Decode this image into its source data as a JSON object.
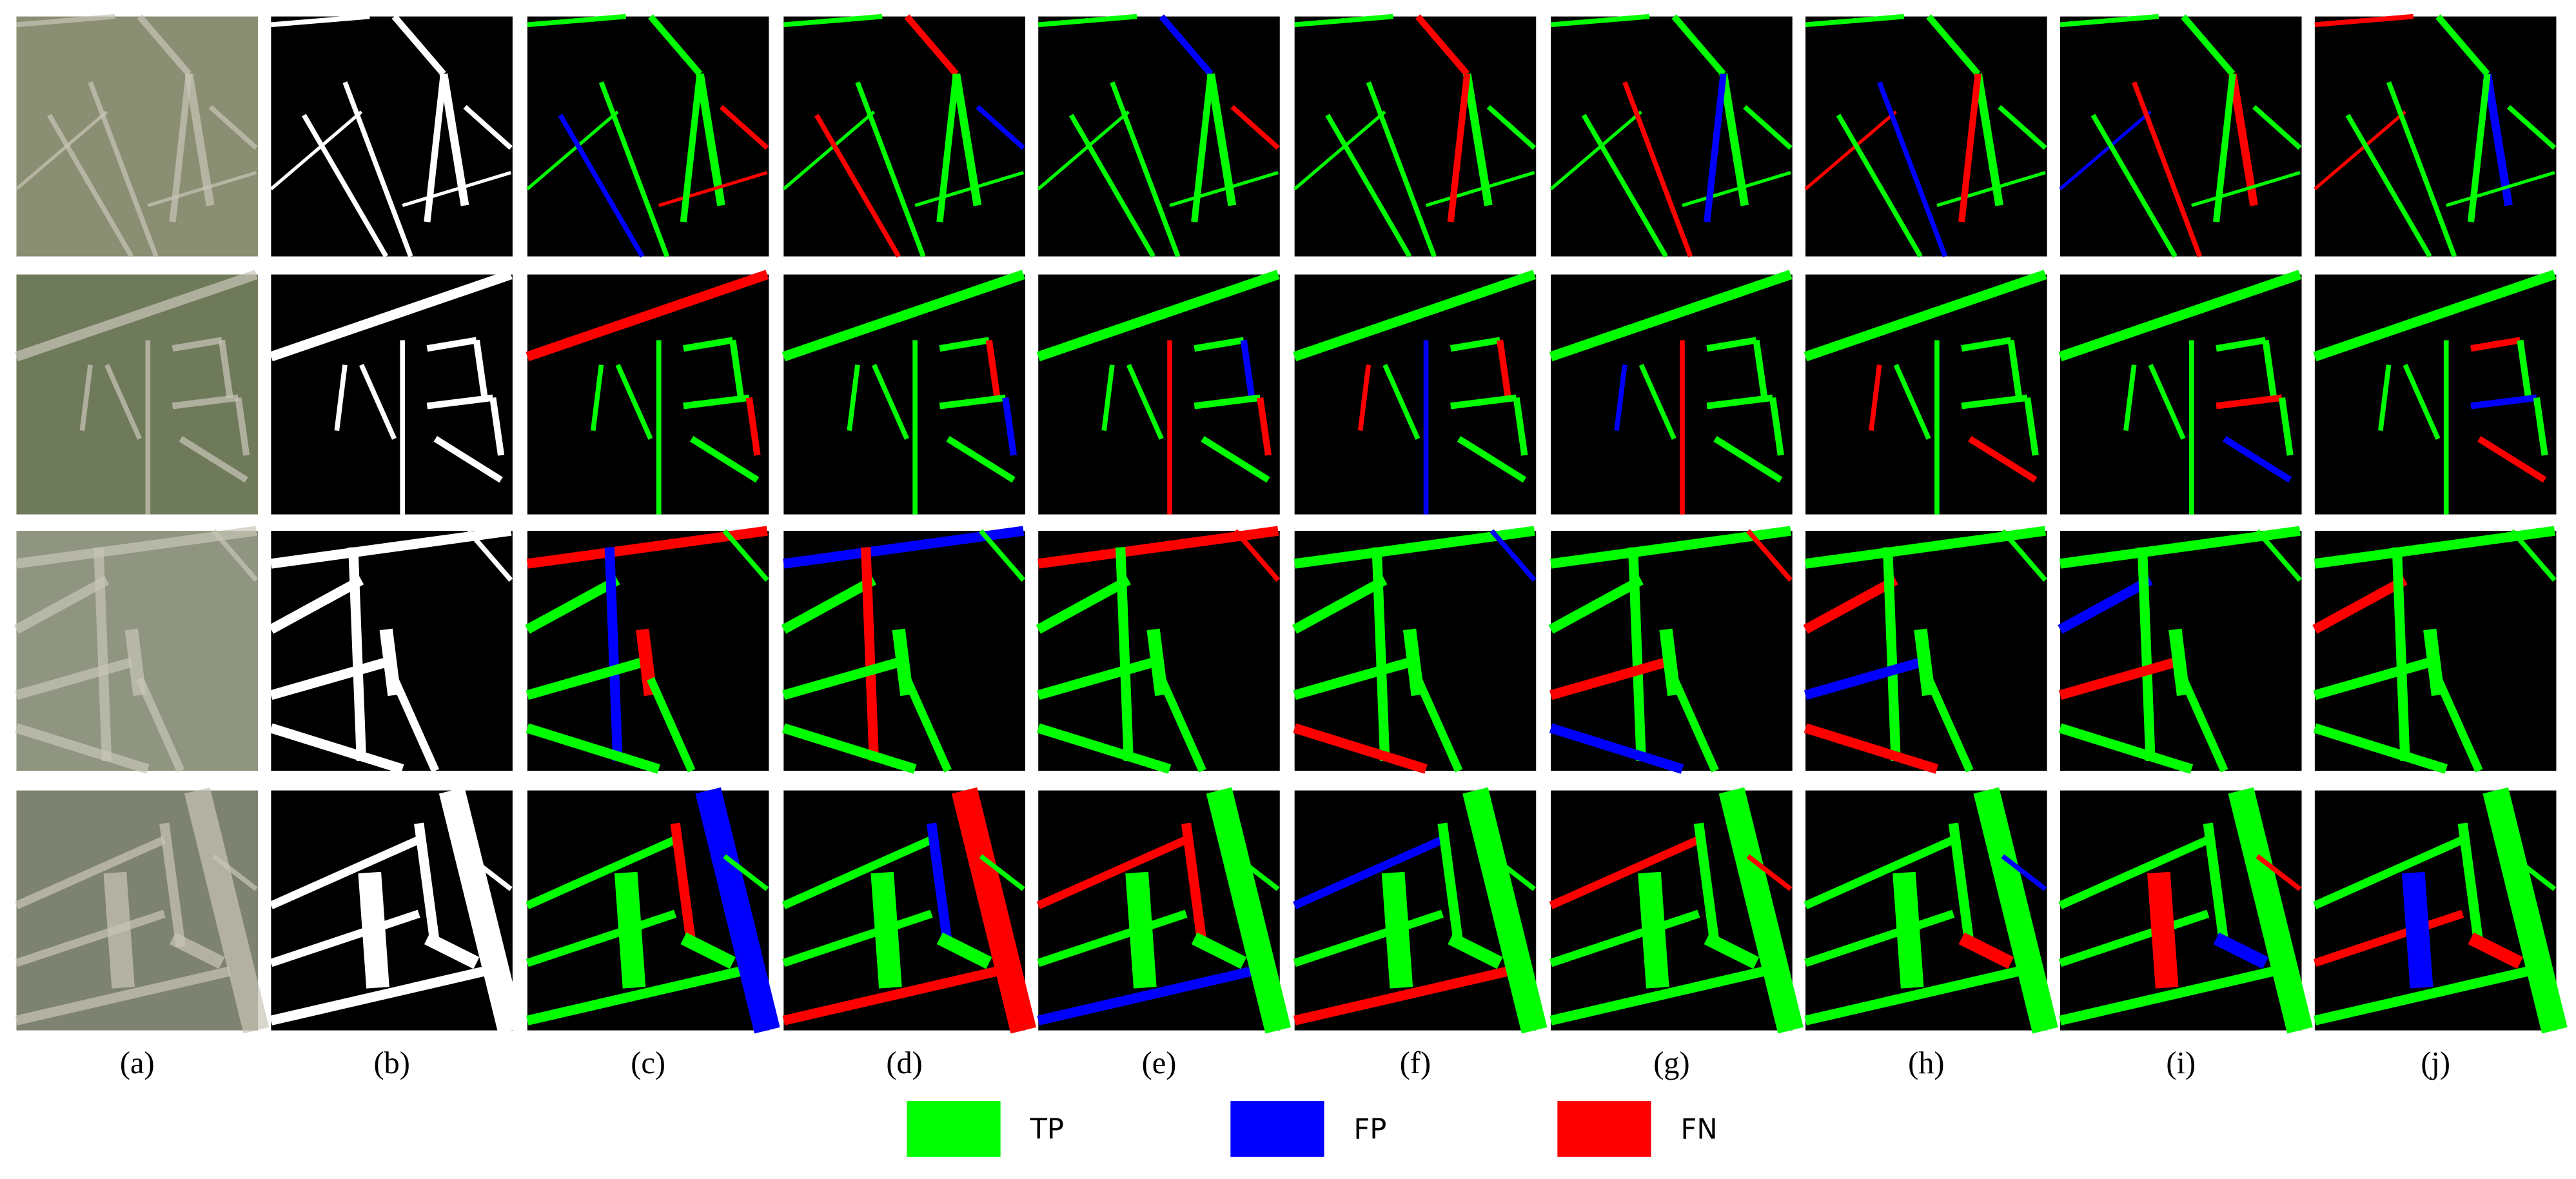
{
  "column_labels": [
    "(a)",
    "(b)",
    "(c)",
    "(d)",
    "(e)",
    "(f)",
    "(g)",
    "(h)",
    "(i)",
    "(j)"
  ],
  "legend": [
    {
      "label": "TP",
      "color": "#00ff00"
    },
    {
      "label": "FP",
      "color": "#0000ff"
    },
    {
      "label": "FN",
      "color": "#ff0000"
    }
  ]
}
